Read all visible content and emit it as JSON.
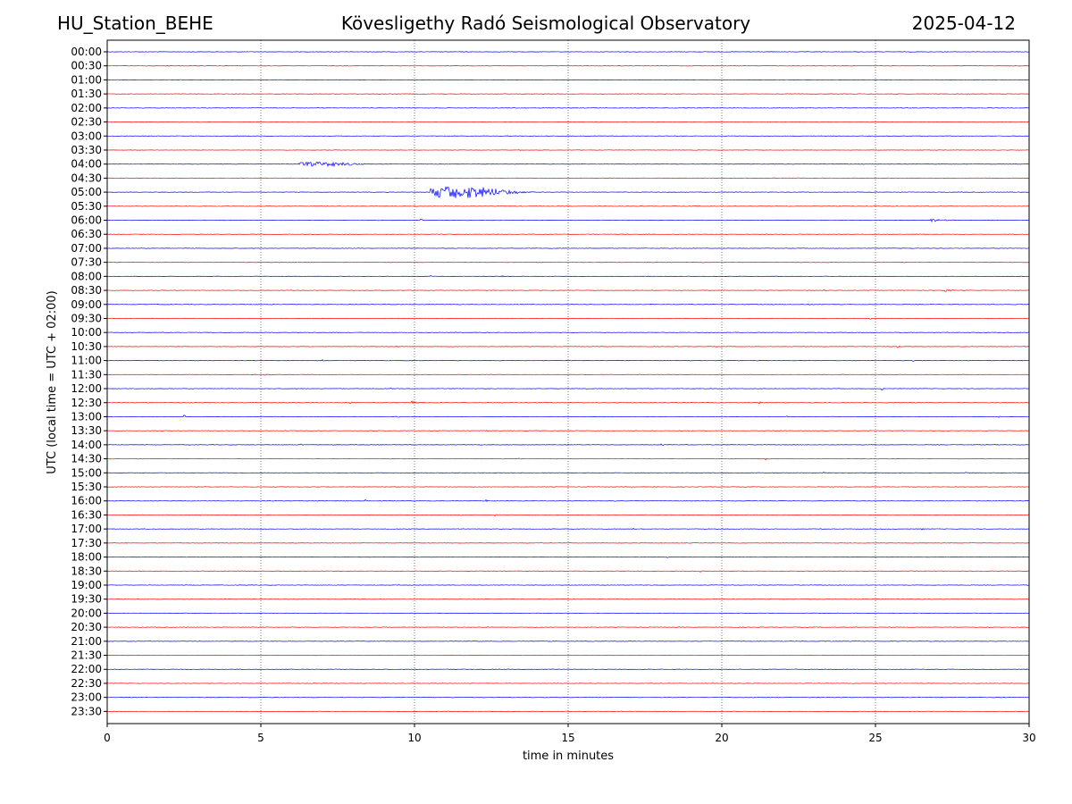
{
  "header": {
    "station": "HU_Station_BEHE",
    "observatory": "Kövesligethy Radó Seismological Observatory",
    "date": "2025-04-12"
  },
  "colors": {
    "trace_a": "#0000ff",
    "trace_b": "#ff0000",
    "grid": "#555555",
    "frame": "#000000"
  },
  "chart_data": {
    "type": "line",
    "title": "Kövesligethy Radó Seismological Observatory",
    "xlabel": "time in minutes",
    "ylabel": "UTC (local time = UTC + 02:00)",
    "xlim": [
      0,
      30
    ],
    "x_ticks": [
      "0",
      "5",
      "10",
      "15",
      "20",
      "25",
      "30"
    ],
    "x_tick_values": [
      0,
      5,
      10,
      15,
      20,
      25,
      30
    ],
    "grid": "vertical dotted lines at 5-minute marks",
    "row_minutes": 30,
    "row_labels": [
      "00:00",
      "00:30",
      "01:00",
      "01:30",
      "02:00",
      "02:30",
      "03:00",
      "03:30",
      "04:00",
      "04:30",
      "05:00",
      "05:30",
      "06:00",
      "06:30",
      "07:00",
      "07:30",
      "08:00",
      "08:30",
      "09:00",
      "09:30",
      "10:00",
      "10:30",
      "11:00",
      "11:30",
      "12:00",
      "12:30",
      "13:00",
      "13:30",
      "14:00",
      "14:30",
      "15:00",
      "15:30",
      "16:00",
      "16:30",
      "17:00",
      "17:30",
      "18:00",
      "18:30",
      "19:00",
      "19:30",
      "20:00",
      "20:30",
      "21:00",
      "21:30",
      "22:00",
      "22:30",
      "23:00",
      "23:30"
    ],
    "row_color_cycle": [
      "blue",
      "red"
    ],
    "events": [
      {
        "row": "00:30",
        "minute": 1.9,
        "amp": 0.25
      },
      {
        "row": "03:30",
        "minute": 13.4,
        "amp": 0.12
      },
      {
        "row": "04:00",
        "minute": 6.2,
        "amp": 0.35,
        "duration": 3.5
      },
      {
        "row": "04:30",
        "minute": 24.9,
        "amp": 0.1
      },
      {
        "row": "05:00",
        "minute": 10.5,
        "amp": 1.0,
        "duration": 4.5
      },
      {
        "row": "05:30",
        "minute": 10.0,
        "amp": 0.2
      },
      {
        "row": "06:00",
        "minute": 10.2,
        "amp": 0.2
      },
      {
        "row": "06:00",
        "minute": 26.8,
        "amp": 0.3,
        "duration": 0.8
      },
      {
        "row": "08:00",
        "minute": 10.5,
        "amp": 0.25
      },
      {
        "row": "08:00",
        "minute": 12.8,
        "amp": 0.3
      },
      {
        "row": "08:30",
        "minute": 23.3,
        "amp": 0.35
      },
      {
        "row": "08:30",
        "minute": 27.2,
        "amp": 0.2,
        "duration": 0.8
      },
      {
        "row": "09:00",
        "minute": 22.8,
        "amp": 0.3
      },
      {
        "row": "09:30",
        "minute": 1.4,
        "amp": 0.15
      },
      {
        "row": "09:30",
        "minute": 24.8,
        "amp": 0.2
      },
      {
        "row": "10:00",
        "minute": 11.3,
        "amp": 0.15
      },
      {
        "row": "10:00",
        "minute": 25.8,
        "amp": 0.2
      },
      {
        "row": "10:30",
        "minute": 9.4,
        "amp": 0.25
      },
      {
        "row": "10:30",
        "minute": 25.7,
        "amp": 0.35
      },
      {
        "row": "11:00",
        "minute": 7.0,
        "amp": 0.2
      },
      {
        "row": "11:00",
        "minute": 26.2,
        "amp": 0.3
      },
      {
        "row": "11:30",
        "minute": 5.1,
        "amp": 0.25
      },
      {
        "row": "11:30",
        "minute": 15.5,
        "amp": 0.15
      },
      {
        "row": "11:30",
        "minute": 22.1,
        "amp": 0.25
      },
      {
        "row": "12:00",
        "minute": 9.2,
        "amp": 0.25
      },
      {
        "row": "12:00",
        "minute": 15.5,
        "amp": 0.2
      },
      {
        "row": "12:00",
        "minute": 25.2,
        "amp": 0.3
      },
      {
        "row": "12:30",
        "minute": 7.9,
        "amp": 0.3
      },
      {
        "row": "12:30",
        "minute": 9.9,
        "amp": 0.35,
        "duration": 0.4
      },
      {
        "row": "12:30",
        "minute": 21.2,
        "amp": 0.3
      },
      {
        "row": "13:00",
        "minute": 2.5,
        "amp": 0.35
      },
      {
        "row": "13:00",
        "minute": 9.4,
        "amp": 0.35
      },
      {
        "row": "13:00",
        "minute": 22.1,
        "amp": 0.15
      },
      {
        "row": "13:00",
        "minute": 29.0,
        "amp": 0.25
      },
      {
        "row": "13:30",
        "minute": 12.3,
        "amp": 0.3
      },
      {
        "row": "13:30",
        "minute": 18.9,
        "amp": 0.15
      },
      {
        "row": "14:00",
        "minute": 6.3,
        "amp": 0.25
      },
      {
        "row": "14:00",
        "minute": 18.0,
        "amp": 0.4
      },
      {
        "row": "14:30",
        "minute": 13.4,
        "amp": 0.15
      },
      {
        "row": "14:30",
        "minute": 21.4,
        "amp": 0.3
      },
      {
        "row": "15:00",
        "minute": 23.3,
        "amp": 0.25
      },
      {
        "row": "15:00",
        "minute": 27.9,
        "amp": 0.2
      },
      {
        "row": "16:00",
        "minute": 8.4,
        "amp": 0.3
      },
      {
        "row": "16:00",
        "minute": 12.3,
        "amp": 0.4
      },
      {
        "row": "16:00",
        "minute": 16.5,
        "amp": 0.15
      },
      {
        "row": "16:30",
        "minute": 0.7,
        "amp": 0.25
      },
      {
        "row": "16:30",
        "minute": 3.0,
        "amp": 0.25
      },
      {
        "row": "16:30",
        "minute": 11.5,
        "amp": 0.3
      },
      {
        "row": "16:30",
        "minute": 12.6,
        "amp": 0.35
      },
      {
        "row": "16:30",
        "minute": 16.1,
        "amp": 0.15
      },
      {
        "row": "16:30",
        "minute": 21.8,
        "amp": 0.25
      },
      {
        "row": "17:00",
        "minute": 17.1,
        "amp": 0.35
      },
      {
        "row": "17:00",
        "minute": 19.4,
        "amp": 0.2
      },
      {
        "row": "17:00",
        "minute": 26.5,
        "amp": 0.2
      },
      {
        "row": "17:30",
        "minute": 0.6,
        "amp": 0.15
      },
      {
        "row": "17:30",
        "minute": 16.6,
        "amp": 0.15
      },
      {
        "row": "18:00",
        "minute": 18.2,
        "amp": 0.2
      },
      {
        "row": "18:30",
        "minute": 19.3,
        "amp": 0.2
      }
    ]
  }
}
